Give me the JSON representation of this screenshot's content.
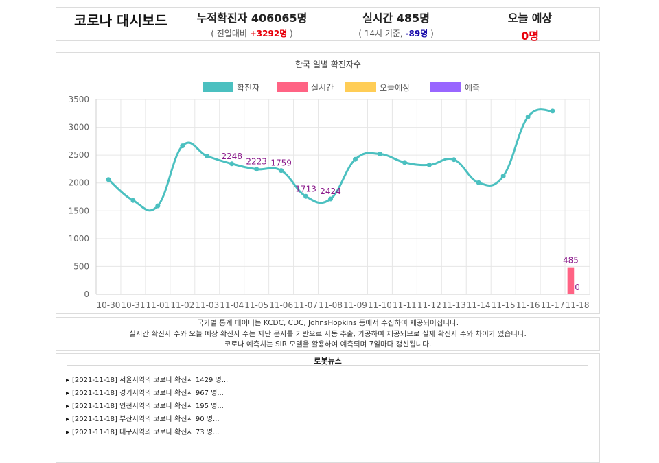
{
  "header": {
    "app_title": "코로나 대시보드",
    "cumulative": {
      "title": "누적확진자 406065명",
      "sub_prefix": "( 전일대비 ",
      "sub_value": "+3292명",
      "sub_suffix": " )"
    },
    "realtime": {
      "title": "실시간 485명",
      "sub_prefix": "( 14시 기준, ",
      "sub_value": "-89명",
      "sub_suffix": " )"
    },
    "forecast": {
      "title": "오늘 예상",
      "value": "0명"
    }
  },
  "chart_data": {
    "type": "line",
    "title": "한국 일별 확진자수",
    "categories": [
      "10-30",
      "10-31",
      "11-01",
      "11-02",
      "11-03",
      "11-04",
      "11-05",
      "11-06",
      "11-07",
      "11-08",
      "11-09",
      "11-10",
      "11-11",
      "11-12",
      "11-13",
      "11-14",
      "11-15",
      "11-16",
      "11-17",
      "11-18"
    ],
    "ylim": [
      0,
      3500
    ],
    "yticks": [
      0,
      500,
      1000,
      1500,
      2000,
      2500,
      3000,
      3500
    ],
    "grid": true,
    "legend_position": "top",
    "series": [
      {
        "name": "확진자",
        "type": "line",
        "color": "#4bc0c0",
        "values": [
          2061,
          1686,
          1589,
          2667,
          2482,
          2344,
          2248,
          2223,
          1759,
          1713,
          2424,
          2520,
          2368,
          2324,
          2419,
          2006,
          2125,
          3187,
          3292,
          null
        ],
        "data_labels": {
          "5": "2248",
          "6": "2223",
          "7": "1759",
          "8": "1713",
          "9": "2424"
        }
      },
      {
        "name": "실시간",
        "type": "bar",
        "color": "#ff6384",
        "values": [
          null,
          null,
          null,
          null,
          null,
          null,
          null,
          null,
          null,
          null,
          null,
          null,
          null,
          null,
          null,
          null,
          null,
          null,
          null,
          485
        ],
        "data_labels": {
          "19": "485"
        }
      },
      {
        "name": "오늘예상",
        "type": "bar",
        "color": "#ffcd56",
        "values": [
          null,
          null,
          null,
          null,
          null,
          null,
          null,
          null,
          null,
          null,
          null,
          null,
          null,
          null,
          null,
          null,
          null,
          null,
          null,
          0
        ],
        "data_labels": {
          "19": "0"
        }
      },
      {
        "name": "예측",
        "type": "bar",
        "color": "#9966ff",
        "values": [
          null,
          null,
          null,
          null,
          null,
          null,
          null,
          null,
          null,
          null,
          null,
          null,
          null,
          null,
          null,
          null,
          null,
          null,
          null,
          null
        ],
        "data_labels": {}
      }
    ],
    "label_color": "#8b1a8b"
  },
  "notice": {
    "lines": [
      "국가별 통계 데이터는 KCDC, CDC, JohnsHopkins 등에서 수집하여 제공되어집니다.",
      "실시간 확진자 수와 오늘 예상 확진자 수는 재난 문자를 기반으로 자동 추출, 가공하여 제공되므로 실제 확진자 수와 차이가 있습니다.",
      "코로나 예측치는 SIR 모델을 활용하여 예측되며 7일마다 갱신됩니다."
    ]
  },
  "news": {
    "title": "로봇뉴스",
    "items": [
      "[2021-11-18] 서울지역의 코로나 확진자 1429 명...",
      "[2021-11-18] 경기지역의 코로나 확진자 967 명...",
      "[2021-11-18] 인천지역의 코로나 확진자 195 명...",
      "[2021-11-18] 부산지역의 코로나 확진자 90 명...",
      "[2021-11-18] 대구지역의 코로나 확진자 73 명..."
    ]
  }
}
